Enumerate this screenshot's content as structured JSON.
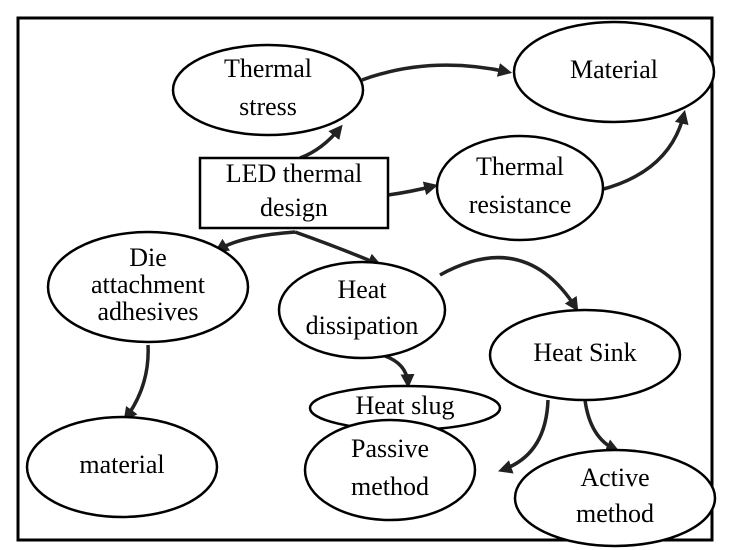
{
  "nodes": [
    {
      "lines": [
        "Thermal",
        "stress"
      ]
    },
    {
      "lines": [
        "Material"
      ]
    },
    {
      "lines": [
        "LED thermal",
        "design"
      ]
    },
    {
      "lines": [
        "Thermal",
        "resistance"
      ]
    },
    {
      "lines": [
        "Die",
        "attachment",
        "adhesives"
      ]
    },
    {
      "lines": [
        "Heat",
        "dissipation"
      ]
    },
    {
      "lines": [
        "Heat Sink"
      ]
    },
    {
      "lines": [
        "Heat slug"
      ]
    },
    {
      "lines": [
        "Passive",
        "method"
      ]
    },
    {
      "lines": [
        "material"
      ]
    },
    {
      "lines": [
        "Active",
        "method"
      ]
    }
  ]
}
